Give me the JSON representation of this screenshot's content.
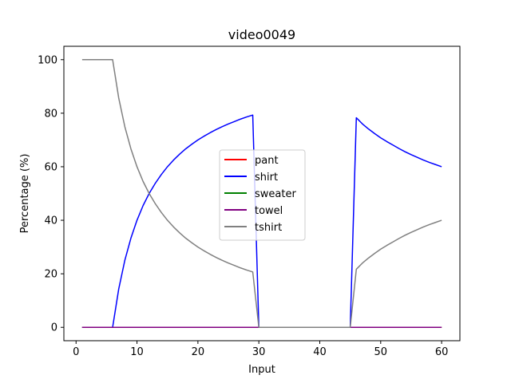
{
  "chart_data": {
    "type": "line",
    "title": "video0049",
    "xlabel": "Input",
    "ylabel": "Percentage (%)",
    "xlim": [
      -2,
      63
    ],
    "ylim": [
      -5,
      105
    ],
    "xticks": [
      0,
      10,
      20,
      30,
      40,
      50,
      60
    ],
    "yticks": [
      0,
      20,
      40,
      60,
      80,
      100
    ],
    "grid": false,
    "legend_position": "center",
    "x": [
      1,
      2,
      3,
      4,
      5,
      6,
      7,
      8,
      9,
      10,
      11,
      12,
      13,
      14,
      15,
      16,
      17,
      18,
      19,
      20,
      21,
      22,
      23,
      24,
      25,
      26,
      27,
      28,
      29,
      30,
      31,
      32,
      33,
      34,
      35,
      36,
      37,
      38,
      39,
      40,
      41,
      42,
      43,
      44,
      45,
      46,
      47,
      48,
      49,
      50,
      51,
      52,
      53,
      54,
      55,
      56,
      57,
      58,
      59,
      60
    ],
    "series": [
      {
        "name": "pant",
        "color": "#ff0000",
        "values": [
          0,
          0,
          0,
          0,
          0,
          0,
          0,
          0,
          0,
          0,
          0,
          0,
          0,
          0,
          0,
          0,
          0,
          0,
          0,
          0,
          0,
          0,
          0,
          0,
          0,
          0,
          0,
          0,
          0,
          0,
          0,
          0,
          0,
          0,
          0,
          0,
          0,
          0,
          0,
          0,
          0,
          0,
          0,
          0,
          0,
          0,
          0,
          0,
          0,
          0,
          0,
          0,
          0,
          0,
          0,
          0,
          0,
          0,
          0,
          0
        ]
      },
      {
        "name": "shirt",
        "color": "#0000ff",
        "values": [
          0,
          0,
          0,
          0,
          0,
          0,
          14.3,
          25,
          33.3,
          40,
          45.5,
          50,
          53.8,
          57.1,
          60,
          62.5,
          64.7,
          66.7,
          68.4,
          70,
          71.4,
          72.7,
          73.9,
          75,
          76,
          76.9,
          77.8,
          78.6,
          79.3,
          0,
          0,
          0,
          0,
          0,
          0,
          0,
          0,
          0,
          0,
          0,
          0,
          0,
          0,
          0,
          0,
          78.3,
          76,
          74.1,
          72.4,
          70.8,
          69.4,
          68.1,
          66.8,
          65.6,
          64.5,
          63.5,
          62.5,
          61.6,
          60.8,
          60
        ]
      },
      {
        "name": "sweater",
        "color": "#008000",
        "values": [
          0,
          0,
          0,
          0,
          0,
          0,
          0,
          0,
          0,
          0,
          0,
          0,
          0,
          0,
          0,
          0,
          0,
          0,
          0,
          0,
          0,
          0,
          0,
          0,
          0,
          0,
          0,
          0,
          0,
          0,
          0,
          0,
          0,
          0,
          0,
          0,
          0,
          0,
          0,
          0,
          0,
          0,
          0,
          0,
          0,
          0,
          0,
          0,
          0,
          0,
          0,
          0,
          0,
          0,
          0,
          0,
          0,
          0,
          0,
          0
        ]
      },
      {
        "name": "towel",
        "color": "#800080",
        "values": [
          0,
          0,
          0,
          0,
          0,
          0,
          0,
          0,
          0,
          0,
          0,
          0,
          0,
          0,
          0,
          0,
          0,
          0,
          0,
          0,
          0,
          0,
          0,
          0,
          0,
          0,
          0,
          0,
          0,
          0,
          0,
          0,
          0,
          0,
          0,
          0,
          0,
          0,
          0,
          0,
          0,
          0,
          0,
          0,
          0,
          0,
          0,
          0,
          0,
          0,
          0,
          0,
          0,
          0,
          0,
          0,
          0,
          0,
          0,
          0
        ]
      },
      {
        "name": "tshirt",
        "color": "#808080",
        "values": [
          100,
          100,
          100,
          100,
          100,
          100,
          85.7,
          75,
          66.7,
          60,
          54.5,
          50,
          46.2,
          42.9,
          40,
          37.5,
          35.3,
          33.3,
          31.6,
          30,
          28.6,
          27.3,
          26.1,
          25,
          24,
          23.1,
          22.2,
          21.4,
          20.7,
          0,
          0,
          0,
          0,
          0,
          0,
          0,
          0,
          0,
          0,
          0,
          0,
          0,
          0,
          0,
          0,
          21.7,
          24,
          25.9,
          27.6,
          29.2,
          30.6,
          31.9,
          33.2,
          34.4,
          35.5,
          36.5,
          37.5,
          38.4,
          39.2,
          40
        ]
      }
    ]
  }
}
